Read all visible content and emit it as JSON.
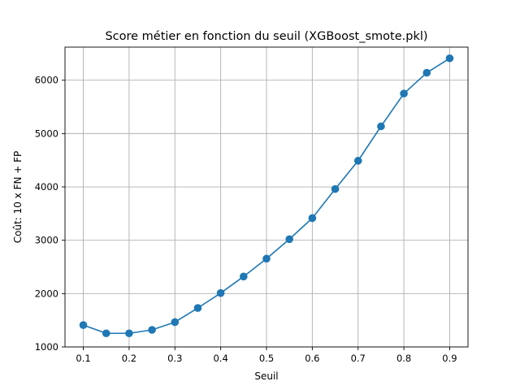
{
  "chart_data": {
    "type": "line",
    "title": "Score métier en fonction du seuil (XGBoost_smote.pkl)",
    "xlabel": "Seuil",
    "ylabel": "Coût: 10 x FN + FP",
    "xlim": [
      0.06,
      0.94
    ],
    "ylim": [
      1000,
      6620
    ],
    "xticks": [
      0.1,
      0.2,
      0.3,
      0.4,
      0.5,
      0.6,
      0.7,
      0.8,
      0.9
    ],
    "xtick_labels": [
      "0.1",
      "0.2",
      "0.3",
      "0.4",
      "0.5",
      "0.6",
      "0.7",
      "0.8",
      "0.9"
    ],
    "yticks": [
      1000,
      2000,
      3000,
      4000,
      5000,
      6000
    ],
    "ytick_labels": [
      "1000",
      "2000",
      "3000",
      "4000",
      "5000",
      "6000"
    ],
    "grid": true,
    "series": [
      {
        "color": "#1f77b4",
        "marker": "circle",
        "x": [
          0.1,
          0.15,
          0.2,
          0.25,
          0.3,
          0.35,
          0.4,
          0.45,
          0.5,
          0.55,
          0.6,
          0.65,
          0.7,
          0.75,
          0.8,
          0.85,
          0.9
        ],
        "y": [
          1410,
          1255,
          1255,
          1320,
          1465,
          1730,
          2010,
          2320,
          2655,
          3020,
          3415,
          3960,
          4490,
          5135,
          5750,
          6140,
          6410
        ]
      }
    ]
  }
}
